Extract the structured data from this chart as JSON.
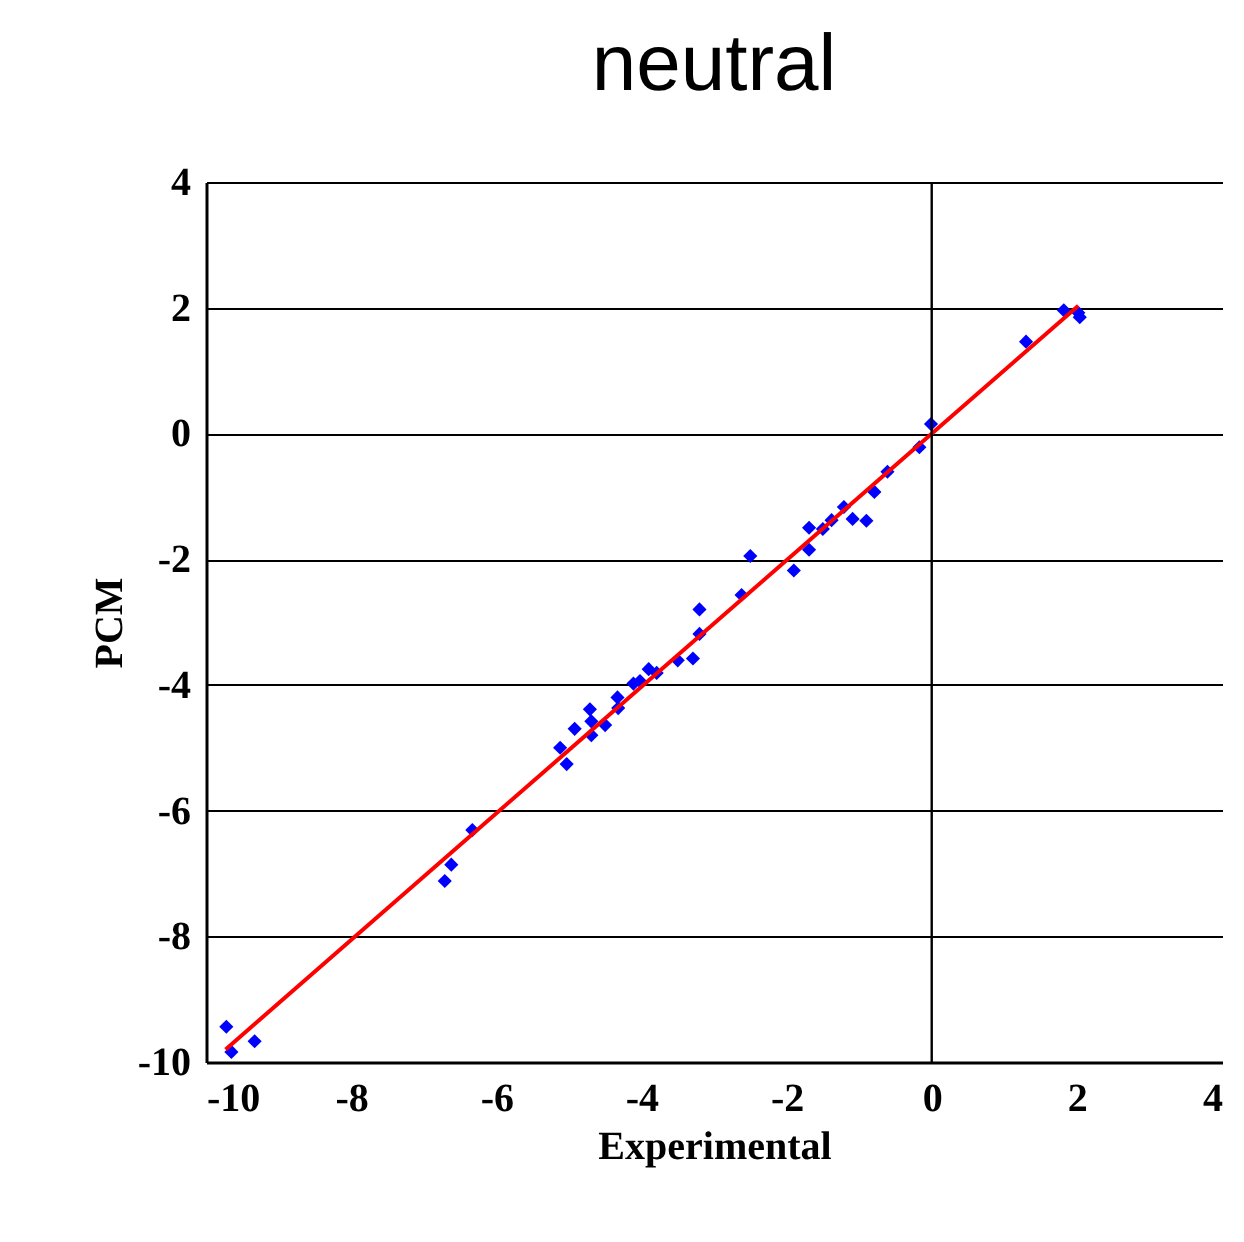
{
  "chart_data": {
    "type": "scatter",
    "title": "neutral",
    "xlabel": "Experimental",
    "ylabel": "PCM",
    "xlim": [
      -10,
      4
    ],
    "ylim": [
      -10,
      4
    ],
    "xticks": [
      -10,
      -8,
      -6,
      -4,
      -2,
      0,
      2,
      4
    ],
    "yticks": [
      -10,
      -8,
      -6,
      -4,
      -2,
      0,
      2,
      4
    ],
    "grid": "y",
    "marker": "diamond",
    "ref_lines": [
      {
        "axis": "x",
        "value": 0,
        "color": "#000000"
      }
    ],
    "series": [
      {
        "color": "#0000ff",
        "x": [
          -9.72,
          -9.65,
          -9.33,
          -6.71,
          -6.62,
          -6.33,
          -5.12,
          -5.03,
          -4.92,
          -4.71,
          -4.69,
          -4.69,
          -4.5,
          -4.32,
          -4.33,
          -4.11,
          -4.02,
          -3.9,
          -3.79,
          -3.5,
          -3.29,
          -3.2,
          -3.2,
          -2.62,
          -2.5,
          -1.9,
          -1.69,
          -1.69,
          -1.5,
          -1.38,
          -1.21,
          -1.09,
          -0.9,
          -0.79,
          -0.61,
          -0.17,
          -0.01,
          1.3,
          1.82,
          2.02,
          2.04
        ],
        "values": [
          -9.44,
          -9.84,
          -9.67,
          -7.12,
          -6.86,
          -6.31,
          -5.0,
          -5.26,
          -4.7,
          -4.39,
          -4.58,
          -4.8,
          -4.64,
          -4.37,
          -4.2,
          -3.98,
          -3.94,
          -3.75,
          -3.81,
          -3.61,
          -3.58,
          -3.19,
          -2.8,
          -2.57,
          -1.95,
          -2.18,
          -1.85,
          -1.5,
          -1.52,
          -1.38,
          -1.17,
          -1.36,
          -1.39,
          -0.93,
          -0.61,
          -0.22,
          0.15,
          1.46,
          1.96,
          1.92,
          1.85
        ]
      },
      {
        "type": "line",
        "color": "#ff0000",
        "line_style": "solid",
        "marker": "none",
        "x": [
          -9.73,
          2.02
        ],
        "values": [
          -9.8,
          2.03
        ]
      }
    ]
  }
}
